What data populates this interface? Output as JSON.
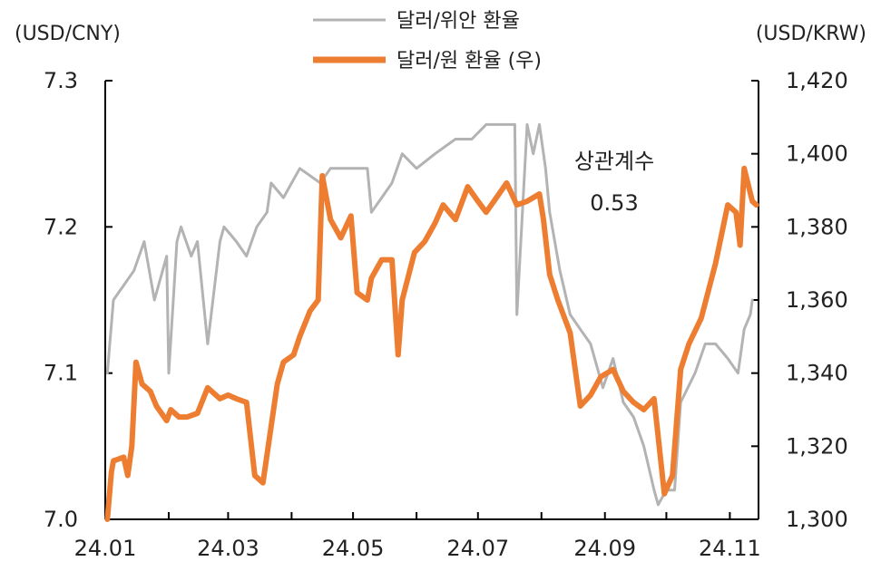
{
  "chart_data": {
    "type": "line",
    "title": "",
    "y_left_label": "(USD/CNY)",
    "y_right_label": "(USD/KRW)",
    "ylim_left": [
      7.0,
      7.3
    ],
    "ylim_right": [
      1300,
      1420
    ],
    "yticks_left": [
      "7.3",
      "7.2",
      "7.1",
      "7.0"
    ],
    "yticks_right": [
      "1,420",
      "1,400",
      "1,380",
      "1,360",
      "1,340",
      "1,320",
      "1,300"
    ],
    "xticks": [
      "24.01",
      "24.03",
      "24.05",
      "24.07",
      "24.09",
      "24.11"
    ],
    "legend_position": "top-center",
    "annotation": {
      "line1": "상관계수",
      "line2": "0.53"
    },
    "colors": {
      "cny": "#b3b3b3",
      "krw": "#ed7d31",
      "axis": "#000000"
    },
    "series": [
      {
        "name": "달러/위안 환율",
        "axis": "left",
        "x": [
          "2024-01-02",
          "2024-01-05",
          "2024-01-10",
          "2024-01-15",
          "2024-01-20",
          "2024-01-25",
          "2024-01-31",
          "2024-02-01",
          "2024-02-05",
          "2024-02-07",
          "2024-02-12",
          "2024-02-15",
          "2024-02-20",
          "2024-02-26",
          "2024-02-28",
          "2024-03-05",
          "2024-03-10",
          "2024-03-15",
          "2024-03-20",
          "2024-03-22",
          "2024-03-28",
          "2024-04-05",
          "2024-04-15",
          "2024-04-20",
          "2024-04-25",
          "2024-05-01",
          "2024-05-08",
          "2024-05-10",
          "2024-05-15",
          "2024-05-20",
          "2024-05-25",
          "2024-06-01",
          "2024-06-10",
          "2024-06-20",
          "2024-06-28",
          "2024-07-05",
          "2024-07-15",
          "2024-07-19",
          "2024-07-20",
          "2024-07-25",
          "2024-07-28",
          "2024-07-31",
          "2024-08-03",
          "2024-08-05",
          "2024-08-10",
          "2024-08-15",
          "2024-08-20",
          "2024-08-25",
          "2024-08-31",
          "2024-09-05",
          "2024-09-10",
          "2024-09-15",
          "2024-09-20",
          "2024-09-25",
          "2024-09-27",
          "2024-10-01",
          "2024-10-05",
          "2024-10-08",
          "2024-10-15",
          "2024-10-20",
          "2024-10-25",
          "2024-10-31",
          "2024-11-05",
          "2024-11-08",
          "2024-11-11",
          "2024-11-12"
        ],
        "values": [
          7.1,
          7.15,
          7.16,
          7.17,
          7.19,
          7.15,
          7.18,
          7.1,
          7.19,
          7.2,
          7.18,
          7.19,
          7.12,
          7.19,
          7.2,
          7.19,
          7.18,
          7.2,
          7.21,
          7.23,
          7.22,
          7.24,
          7.23,
          7.24,
          7.24,
          7.24,
          7.24,
          7.21,
          7.22,
          7.23,
          7.25,
          7.24,
          7.25,
          7.26,
          7.26,
          7.27,
          7.27,
          7.27,
          7.14,
          7.27,
          7.25,
          7.27,
          7.24,
          7.21,
          7.17,
          7.14,
          7.13,
          7.12,
          7.09,
          7.11,
          7.08,
          7.07,
          7.05,
          7.02,
          7.01,
          7.02,
          7.02,
          7.08,
          7.1,
          7.12,
          7.12,
          7.11,
          7.1,
          7.13,
          7.14,
          7.15
        ]
      },
      {
        "name": "달러/원 환율 (우)",
        "axis": "right",
        "x": [
          "2024-01-02",
          "2024-01-04",
          "2024-01-05",
          "2024-01-10",
          "2024-01-12",
          "2024-01-14",
          "2024-01-16",
          "2024-01-19",
          "2024-01-23",
          "2024-01-26",
          "2024-01-31",
          "2024-02-02",
          "2024-02-06",
          "2024-02-10",
          "2024-02-15",
          "2024-02-20",
          "2024-02-26",
          "2024-03-01",
          "2024-03-05",
          "2024-03-10",
          "2024-03-14",
          "2024-03-18",
          "2024-03-25",
          "2024-03-28",
          "2024-04-02",
          "2024-04-05",
          "2024-04-10",
          "2024-04-14",
          "2024-04-16",
          "2024-04-20",
          "2024-04-25",
          "2024-04-30",
          "2024-05-03",
          "2024-05-08",
          "2024-05-10",
          "2024-05-15",
          "2024-05-20",
          "2024-05-23",
          "2024-05-25",
          "2024-05-31",
          "2024-06-05",
          "2024-06-10",
          "2024-06-14",
          "2024-06-20",
          "2024-06-26",
          "2024-07-01",
          "2024-07-05",
          "2024-07-10",
          "2024-07-15",
          "2024-07-20",
          "2024-07-25",
          "2024-07-31",
          "2024-08-02",
          "2024-08-05",
          "2024-08-09",
          "2024-08-15",
          "2024-08-20",
          "2024-08-25",
          "2024-08-30",
          "2024-09-05",
          "2024-09-10",
          "2024-09-15",
          "2024-09-20",
          "2024-09-25",
          "2024-09-30",
          "2024-10-04",
          "2024-10-08",
          "2024-10-12",
          "2024-10-18",
          "2024-10-25",
          "2024-10-31",
          "2024-11-04",
          "2024-11-06",
          "2024-11-08",
          "2024-11-12",
          "2024-11-14"
        ],
        "values": [
          1300,
          1313,
          1316,
          1317,
          1312,
          1320,
          1343,
          1337,
          1335,
          1331,
          1327,
          1330,
          1328,
          1328,
          1329,
          1336,
          1333,
          1334,
          1333,
          1332,
          1312,
          1310,
          1337,
          1343,
          1345,
          1350,
          1357,
          1360,
          1394,
          1382,
          1377,
          1383,
          1362,
          1360,
          1366,
          1371,
          1371,
          1345,
          1360,
          1373,
          1376,
          1381,
          1386,
          1382,
          1391,
          1387,
          1384,
          1388,
          1392,
          1386,
          1387,
          1389,
          1382,
          1367,
          1360,
          1351,
          1331,
          1334,
          1339,
          1341,
          1335,
          1332,
          1330,
          1333,
          1307,
          1312,
          1341,
          1348,
          1355,
          1370,
          1386,
          1384,
          1375,
          1396,
          1387,
          1386
        ]
      }
    ]
  }
}
